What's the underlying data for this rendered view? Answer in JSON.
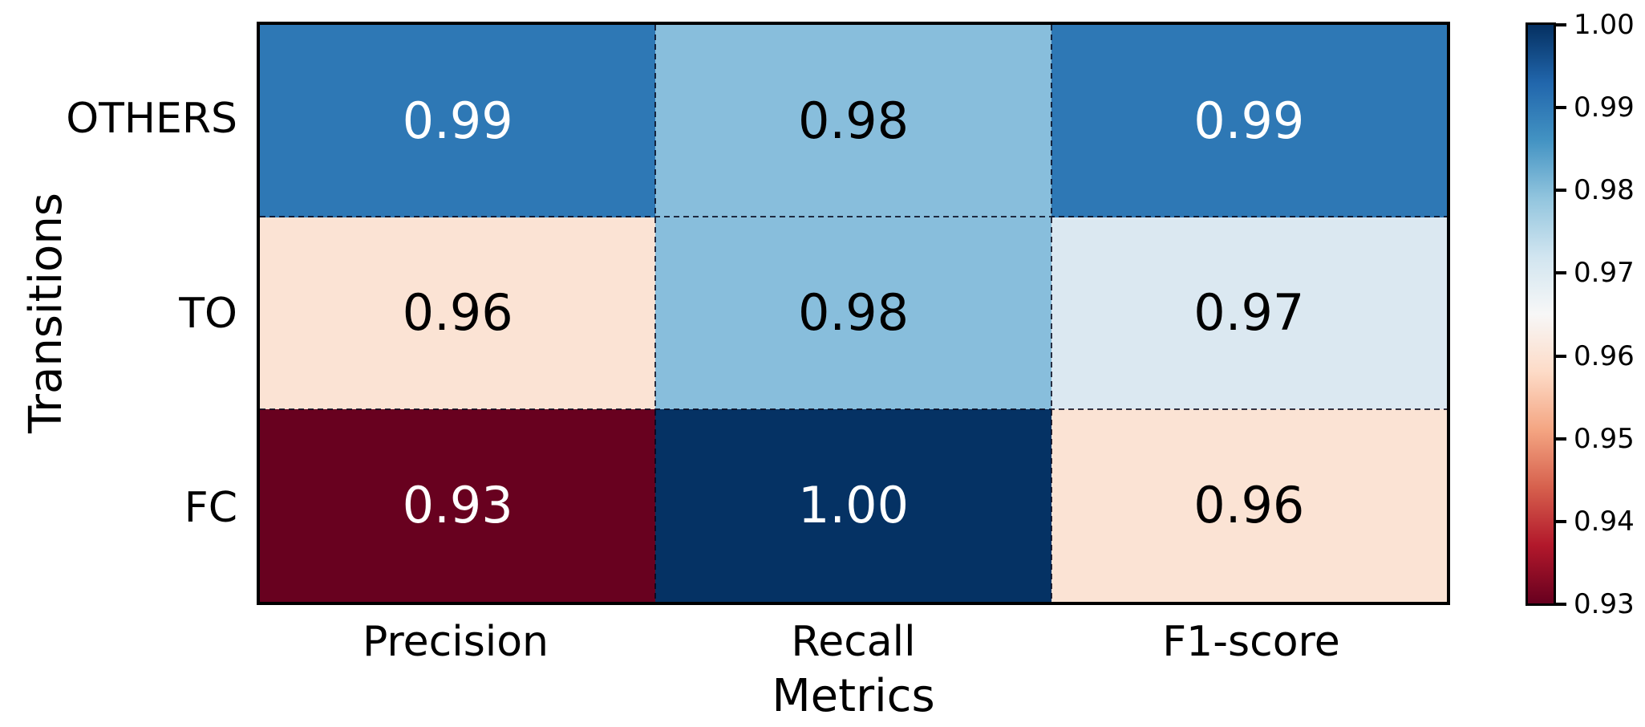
{
  "chart_data": {
    "type": "heatmap",
    "title": "",
    "xlabel": "Metrics",
    "ylabel": "Transitions",
    "columns": [
      "Precision",
      "Recall",
      "F1-score"
    ],
    "rows": [
      "OTHERS",
      "TO",
      "FC"
    ],
    "series": [
      {
        "name": "OTHERS",
        "values": [
          0.99,
          0.98,
          0.99
        ]
      },
      {
        "name": "TO",
        "values": [
          0.96,
          0.98,
          0.97
        ]
      },
      {
        "name": "FC",
        "values": [
          0.93,
          1.0,
          0.96
        ]
      }
    ],
    "colormap": "RdBu",
    "vmin": 0.93,
    "vmax": 1.0,
    "colorbar_ticks": [
      "1.00",
      "0.99",
      "0.98",
      "0.97",
      "0.96",
      "0.95",
      "0.94",
      "0.93"
    ],
    "legend_position": "colorbar-right",
    "grid": "dashed-cell-separators"
  },
  "cells": [
    {
      "row": "OTHERS",
      "col": "Precision",
      "label": "0.99",
      "bg": "#2e78b5",
      "text_color": "#ffffff"
    },
    {
      "row": "OTHERS",
      "col": "Recall",
      "label": "0.98",
      "bg": "#88bedc",
      "text_color": "#000000"
    },
    {
      "row": "OTHERS",
      "col": "F1-score",
      "label": "0.99",
      "bg": "#2e78b5",
      "text_color": "#ffffff"
    },
    {
      "row": "TO",
      "col": "Precision",
      "label": "0.96",
      "bg": "#fbe3d4",
      "text_color": "#000000"
    },
    {
      "row": "TO",
      "col": "Recall",
      "label": "0.98",
      "bg": "#88bedc",
      "text_color": "#000000"
    },
    {
      "row": "TO",
      "col": "F1-score",
      "label": "0.97",
      "bg": "#dbe8f1",
      "text_color": "#000000"
    },
    {
      "row": "FC",
      "col": "Precision",
      "label": "0.93",
      "bg": "#68011f",
      "text_color": "#ffffff"
    },
    {
      "row": "FC",
      "col": "Recall",
      "label": "1.00",
      "bg": "#053264",
      "text_color": "#ffffff"
    },
    {
      "row": "FC",
      "col": "F1-score",
      "label": "0.96",
      "bg": "#fbe3d4",
      "text_color": "#000000"
    }
  ],
  "colorbar": {
    "ticks": [
      "1.00",
      "0.99",
      "0.98",
      "0.97",
      "0.96",
      "0.95",
      "0.94",
      "0.93"
    ],
    "gradient_top_to_bottom": [
      "#053061",
      "#2166ac",
      "#4393c3",
      "#92c5de",
      "#d1e5f0",
      "#f7f7f7",
      "#fddbc7",
      "#f4a582",
      "#d6604d",
      "#b2182b",
      "#67001f"
    ],
    "border_color": "#000000"
  },
  "colors": {
    "plot_border": "#000000",
    "background": "#ffffff",
    "tick_text": "#000000"
  }
}
